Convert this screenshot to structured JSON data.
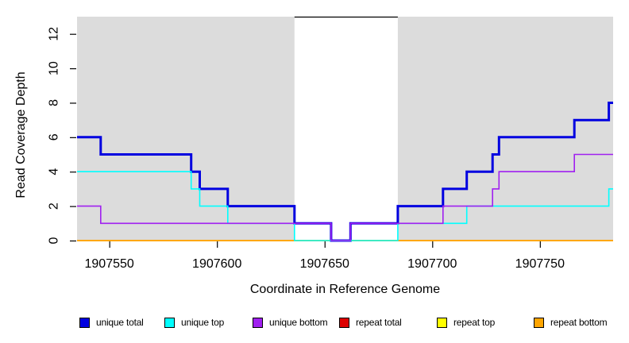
{
  "figure": {
    "x_title": "Coordinate in Reference Genome",
    "y_title": "Read Coverage Depth"
  },
  "chart_data": {
    "type": "line",
    "subtype": "step",
    "title": "",
    "xlabel": "Coordinate in Reference Genome",
    "ylabel": "Read Coverage Depth",
    "xlim": [
      1907535,
      1907784
    ],
    "ylim": [
      0,
      13
    ],
    "x_ticks": [
      1907550,
      1907600,
      1907650,
      1907700,
      1907750
    ],
    "y_ticks": [
      0,
      2,
      4,
      6,
      8,
      10,
      12
    ],
    "grid": false,
    "plot_bg_color": "#DCDCDC",
    "highlight_region": {
      "start": 1907636,
      "end": 1907684,
      "fill": "#FFFFFF",
      "top_border": "#000000"
    },
    "series": [
      {
        "name": "unique total",
        "color": "#0000E0",
        "width": 3,
        "points": [
          [
            1907535,
            6
          ],
          [
            1907546,
            5
          ],
          [
            1907588,
            4
          ],
          [
            1907592,
            3
          ],
          [
            1907605,
            2
          ],
          [
            1907636,
            1
          ],
          [
            1907653,
            0
          ],
          [
            1907662,
            1
          ],
          [
            1907684,
            2
          ],
          [
            1907705,
            3
          ],
          [
            1907716,
            4
          ],
          [
            1907728,
            5
          ],
          [
            1907731,
            6
          ],
          [
            1907766,
            7
          ],
          [
            1907782,
            8
          ]
        ]
      },
      {
        "name": "unique top",
        "color": "#00FFFF",
        "width": 1.6,
        "points": [
          [
            1907535,
            4
          ],
          [
            1907588,
            3
          ],
          [
            1907592,
            2
          ],
          [
            1907605,
            1
          ],
          [
            1907636,
            0
          ],
          [
            1907684,
            1
          ],
          [
            1907716,
            2
          ],
          [
            1907782,
            3
          ]
        ]
      },
      {
        "name": "unique bottom",
        "color": "#A020F0",
        "width": 1.6,
        "points": [
          [
            1907535,
            2
          ],
          [
            1907546,
            1
          ],
          [
            1907653,
            0
          ],
          [
            1907662,
            1
          ],
          [
            1907705,
            2
          ],
          [
            1907728,
            3
          ],
          [
            1907731,
            4
          ],
          [
            1907766,
            5
          ]
        ]
      },
      {
        "name": "repeat total",
        "color": "#DD0000",
        "width": 1.6,
        "points": [
          [
            1907535,
            0
          ]
        ]
      },
      {
        "name": "repeat top",
        "color": "#FFFF00",
        "width": 1.6,
        "points": [
          [
            1907535,
            0
          ]
        ]
      },
      {
        "name": "repeat bottom",
        "color": "#FFA500",
        "width": 1.8,
        "points": [
          [
            1907535,
            0
          ]
        ]
      }
    ],
    "draw_order": [
      3,
      4,
      5,
      0,
      1,
      2
    ],
    "legend_position": "bottom"
  }
}
